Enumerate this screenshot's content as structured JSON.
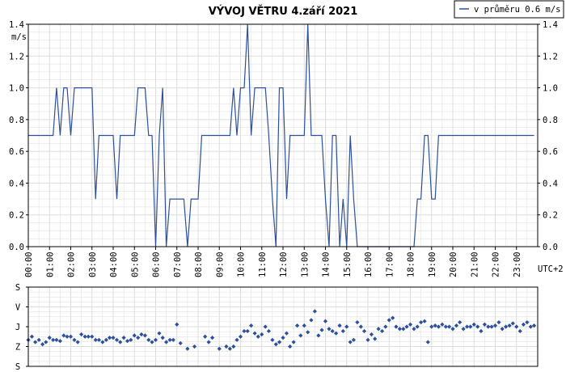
{
  "colors": {
    "line": "#2c4f9e",
    "grid": "#dcdcdc",
    "axis": "#000000",
    "background": "#ffffff"
  },
  "chart_data": [
    {
      "type": "line",
      "title": "VÝVOJ VĚTRU  4.září 2021",
      "ylabel": "m/s",
      "timezone_label": "UTC+2",
      "legend": {
        "label": "v průměru 0.6 m/s",
        "position": "top-right"
      },
      "ylim": [
        0,
        1.4
      ],
      "y_ticks": [
        "0.0",
        "0.2",
        "0.4",
        "0.6",
        "0.8",
        "1.0",
        "1.2",
        "1.4"
      ],
      "x_ticks": [
        "00:00",
        "01:00",
        "02:00",
        "03:00",
        "04:00",
        "05:00",
        "06:00",
        "07:00",
        "08:00",
        "09:00",
        "10:00",
        "11:00",
        "12:00",
        "13:00",
        "14:00",
        "15:00",
        "16:00",
        "17:00",
        "18:00",
        "19:00",
        "20:00",
        "21:00",
        "22:00",
        "23:00"
      ],
      "grid": true,
      "series": [
        {
          "x_hours": [
            0,
            0.17,
            0.33,
            0.5,
            0.67,
            0.83,
            1,
            1.17,
            1.33,
            1.5,
            1.67,
            1.83,
            2,
            2.17,
            2.33,
            2.5,
            2.67,
            2.83,
            3,
            3.17,
            3.33,
            3.5,
            3.67,
            3.83,
            4,
            4.17,
            4.33,
            4.5,
            4.67,
            4.83,
            5,
            5.17,
            5.33,
            5.5,
            5.67,
            5.83,
            6,
            6.17,
            6.33,
            6.5,
            6.67,
            6.83,
            7,
            7.17,
            7.33,
            7.5,
            7.67,
            7.83,
            8,
            8.17,
            8.33,
            8.5,
            8.67,
            8.83,
            9,
            9.17,
            9.33,
            9.5,
            9.67,
            9.83,
            10,
            10.17,
            10.33,
            10.5,
            10.67,
            10.83,
            11,
            11.17,
            11.33,
            11.5,
            11.67,
            11.83,
            12,
            12.17,
            12.33,
            12.5,
            12.67,
            12.83,
            13,
            13.17,
            13.33,
            13.5,
            13.67,
            13.83,
            14,
            14.17,
            14.33,
            14.5,
            14.67,
            14.83,
            15,
            15.17,
            15.33,
            15.5,
            15.67,
            15.83,
            16,
            16.17,
            16.33,
            16.5,
            16.67,
            16.83,
            17,
            17.17,
            17.33,
            17.5,
            17.67,
            17.83,
            18,
            18.17,
            18.33,
            18.5,
            18.67,
            18.83,
            19,
            19.17,
            19.33,
            19.5,
            19.67,
            19.83,
            20,
            20.17,
            20.33,
            20.5,
            20.67,
            20.83,
            21,
            21.17,
            21.33,
            21.5,
            21.67,
            21.83,
            22,
            22.17,
            22.33,
            22.5,
            22.67,
            22.83,
            23,
            23.17,
            23.33,
            23.5,
            23.67,
            23.83
          ],
          "values": [
            0.7,
            0.7,
            0.7,
            0.7,
            0.7,
            0.7,
            0.7,
            0.7,
            1.0,
            0.7,
            1.0,
            1.0,
            0.7,
            1.0,
            1.0,
            1.0,
            1.0,
            1.0,
            1.0,
            0.3,
            0.7,
            0.7,
            0.7,
            0.7,
            0.7,
            0.3,
            0.7,
            0.7,
            0.7,
            0.7,
            0.7,
            1.0,
            1.0,
            1.0,
            0.7,
            0.7,
            0.0,
            0.7,
            1.0,
            0.0,
            0.3,
            0.3,
            0.3,
            0.3,
            0.3,
            0.0,
            0.3,
            0.3,
            0.3,
            0.7,
            0.7,
            0.7,
            0.7,
            0.7,
            0.7,
            0.7,
            0.7,
            0.7,
            1.0,
            0.7,
            1.0,
            1.0,
            1.4,
            0.7,
            1.0,
            1.0,
            1.0,
            1.0,
            0.7,
            0.3,
            0.0,
            1.0,
            1.0,
            0.3,
            0.7,
            0.7,
            0.7,
            0.7,
            0.7,
            1.4,
            0.7,
            0.7,
            0.7,
            0.7,
            0.3,
            0.0,
            0.7,
            0.7,
            0.0,
            0.3,
            0.0,
            0.7,
            0.3,
            0.0,
            0.0,
            0.0,
            0.0,
            0.0,
            0.0,
            0.0,
            0.0,
            0.0,
            0.0,
            0.0,
            0.0,
            0.0,
            0.0,
            0.0,
            0.0,
            0.0,
            0.3,
            0.3,
            0.7,
            0.7,
            0.3,
            0.3,
            0.7,
            0.7,
            0.7,
            0.7,
            0.7,
            0.7,
            0.7,
            0.7,
            0.7,
            0.7,
            0.7,
            0.7,
            0.7,
            0.7,
            0.7,
            0.7,
            0.7,
            0.7,
            0.7,
            0.7,
            0.7,
            0.7,
            0.7,
            0.7,
            0.7,
            0.7,
            0.7,
            0.7
          ]
        }
      ]
    },
    {
      "type": "scatter",
      "title": "",
      "y_categories": [
        "S",
        "V",
        "J",
        "Z",
        "S"
      ],
      "x_ticks_ref": "same as top chart",
      "grid": true,
      "series": [
        {
          "x_hours": [
            0,
            0.17,
            0.33,
            0.5,
            0.67,
            0.83,
            1,
            1.17,
            1.33,
            1.5,
            1.67,
            1.83,
            2,
            2.17,
            2.33,
            2.5,
            2.67,
            2.83,
            3,
            3.17,
            3.33,
            3.5,
            3.67,
            3.83,
            4,
            4.17,
            4.33,
            4.5,
            4.67,
            4.83,
            5,
            5.17,
            5.33,
            5.5,
            5.67,
            5.83,
            6,
            6.17,
            6.33,
            6.5,
            6.67,
            6.83,
            7,
            7.17,
            7.5,
            7.83,
            8.33,
            8.5,
            8.67,
            9,
            9.33,
            9.5,
            9.67,
            9.83,
            10,
            10.17,
            10.33,
            10.5,
            10.67,
            10.83,
            11,
            11.17,
            11.33,
            11.5,
            11.67,
            11.83,
            12,
            12.17,
            12.33,
            12.5,
            12.67,
            12.83,
            13,
            13.17,
            13.33,
            13.5,
            13.67,
            13.83,
            14,
            14.17,
            14.33,
            14.5,
            14.67,
            14.83,
            15,
            15.17,
            15.33,
            15.5,
            15.67,
            15.83,
            16,
            16.17,
            16.33,
            16.5,
            16.67,
            16.83,
            17,
            17.17,
            17.33,
            17.5,
            17.67,
            17.83,
            18,
            18.17,
            18.33,
            18.5,
            18.67,
            18.83,
            19,
            19.17,
            19.33,
            19.5,
            19.67,
            19.83,
            20,
            20.17,
            20.33,
            20.5,
            20.67,
            20.83,
            21,
            21.17,
            21.33,
            21.5,
            21.67,
            21.83,
            22,
            22.17,
            22.33,
            22.5,
            22.67,
            22.83,
            23,
            23.17,
            23.33,
            23.5,
            23.67,
            23.83
          ],
          "direction_deg": [
            240,
            225,
            250,
            240,
            260,
            250,
            230,
            240,
            240,
            245,
            220,
            225,
            225,
            240,
            250,
            215,
            225,
            225,
            225,
            240,
            240,
            250,
            240,
            230,
            230,
            240,
            250,
            230,
            245,
            240,
            220,
            230,
            215,
            220,
            240,
            250,
            240,
            210,
            230,
            250,
            240,
            240,
            170,
            255,
            280,
            270,
            225,
            250,
            230,
            280,
            270,
            280,
            270,
            240,
            225,
            200,
            200,
            175,
            210,
            225,
            215,
            180,
            200,
            240,
            260,
            250,
            230,
            210,
            270,
            250,
            175,
            220,
            175,
            205,
            150,
            110,
            220,
            195,
            155,
            190,
            200,
            210,
            175,
            200,
            180,
            250,
            240,
            160,
            180,
            200,
            240,
            215,
            235,
            190,
            200,
            180,
            150,
            140,
            180,
            190,
            190,
            180,
            170,
            190,
            180,
            160,
            155,
            250,
            180,
            175,
            180,
            170,
            180,
            180,
            190,
            175,
            160,
            190,
            180,
            180,
            170,
            180,
            200,
            170,
            180,
            180,
            175,
            160,
            190,
            180,
            175,
            165,
            180,
            200,
            170,
            160,
            180,
            175
          ]
        }
      ]
    }
  ]
}
